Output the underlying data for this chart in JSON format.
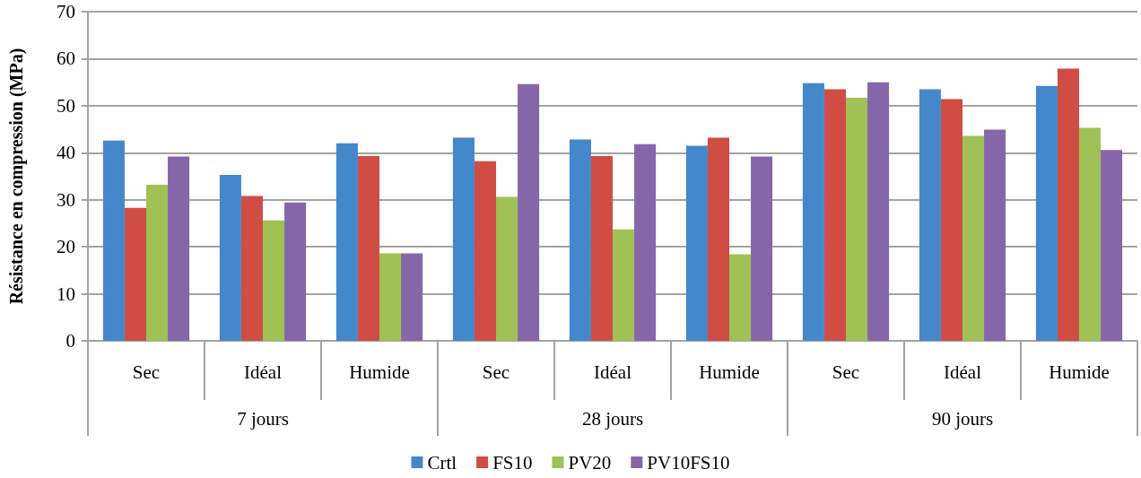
{
  "chart_data": {
    "type": "bar",
    "ylabel": "Résistance en compression (MPa)",
    "categories": [
      "Sec",
      "Idéal",
      "Humide",
      "Sec",
      "Idéal",
      "Humide",
      "Sec",
      "Idéal",
      "Humide"
    ],
    "annotations": [
      "7 jours",
      "28 jours",
      "90 jours"
    ],
    "series": [
      {
        "name": "Crtl",
        "color": "#4587cb",
        "values": [
          42.6,
          35.3,
          42.0,
          43.2,
          42.8,
          41.5,
          54.8,
          53.5,
          54.2
        ]
      },
      {
        "name": "FS10",
        "color": "#cf4d45",
        "values": [
          28.3,
          30.8,
          39.3,
          38.2,
          39.3,
          43.2,
          53.5,
          51.4,
          57.9
        ]
      },
      {
        "name": "PV20",
        "color": "#9fc155",
        "values": [
          33.2,
          25.6,
          18.6,
          30.6,
          23.7,
          18.4,
          51.7,
          43.6,
          45.3
        ]
      },
      {
        "name": "PV10FS10",
        "color": "#8567a9",
        "values": [
          39.2,
          29.4,
          18.6,
          54.6,
          41.8,
          39.2,
          55.0,
          44.9,
          40.6
        ]
      }
    ],
    "ylim": [
      0,
      70
    ],
    "yticks": [
      0,
      10,
      20,
      30,
      40,
      50,
      60,
      70
    ],
    "grid": "y",
    "legend": "bottom"
  }
}
